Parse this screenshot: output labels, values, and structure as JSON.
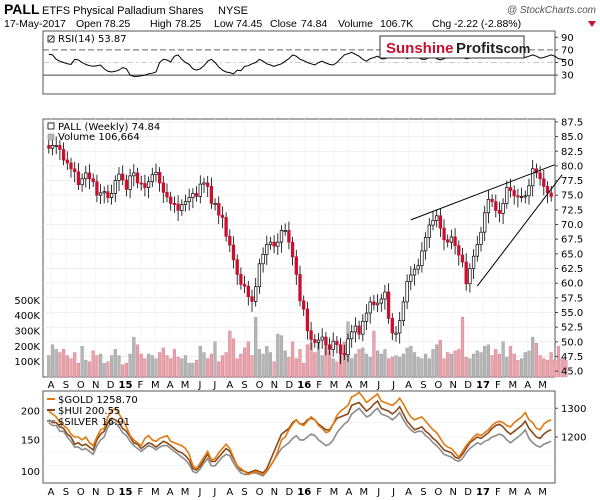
{
  "header": {
    "symbol": "PALL",
    "name": "ETFS Physical Palladium Shares",
    "exchange": "NYSE",
    "watermark": "@ StockCharts.com",
    "date": "17-May-2017",
    "open_label": "Open",
    "open": "78.25",
    "high_label": "High",
    "high": "78.25",
    "low_label": "Low",
    "low": "74.45",
    "close_label": "Close",
    "close": "74.84",
    "volume_label": "Volume",
    "volume": "106.7K",
    "chg_label": "Chg",
    "chg": "-2.22 (-2.88%)"
  },
  "logo": {
    "part1": "Sunshine",
    "part2": "Profits",
    "part3": ".com"
  },
  "colors": {
    "up": "#ffffff",
    "down": "#c8102e",
    "gold": "#e07a10",
    "hui": "#8b4a1c",
    "silver": "#8c8c8c",
    "rsi": "#000000",
    "volume_up": "#b5b5b5",
    "volume_down": "#e8a3ad"
  },
  "x_axis": {
    "labels": [
      "A",
      "S",
      "O",
      "N",
      "D",
      "15",
      "F",
      "M",
      "A",
      "M",
      "J",
      "J",
      "A",
      "S",
      "O",
      "N",
      "D",
      "16",
      "F",
      "M",
      "A",
      "M",
      "J",
      "J",
      "A",
      "S",
      "O",
      "N",
      "D",
      "17",
      "F",
      "M",
      "A",
      "M"
    ],
    "bold": [
      "15",
      "16",
      "17"
    ]
  },
  "chart_data": [
    {
      "type": "line",
      "panel": "RSI",
      "title": "RSI(14) 53.87",
      "ylim": [
        0,
        100
      ],
      "yticks": [
        30,
        50,
        70,
        90
      ],
      "reference_lines": [
        30,
        70
      ],
      "values": [
        63,
        62,
        55,
        52,
        50,
        48,
        47,
        55,
        54,
        50,
        47,
        45,
        44,
        45,
        46,
        40,
        36,
        35,
        36,
        38,
        42,
        40,
        30,
        28,
        28,
        29,
        30,
        32,
        33,
        35,
        50,
        55,
        54,
        51,
        60,
        62,
        55,
        50,
        47,
        40,
        38,
        40,
        45,
        52,
        55,
        50,
        43,
        38,
        35,
        34,
        32,
        38,
        37,
        44,
        45,
        48,
        50,
        55,
        52,
        48,
        46,
        44,
        46,
        48,
        52,
        56,
        62,
        60,
        55,
        53,
        50,
        48,
        46,
        50,
        52,
        49,
        47,
        46,
        50,
        56,
        62,
        64,
        66,
        63,
        60,
        55,
        52,
        56,
        58,
        60,
        56,
        56,
        58,
        60,
        58,
        62,
        60,
        56,
        58,
        60,
        58,
        55,
        55,
        58,
        60,
        56,
        54,
        56,
        58,
        62,
        60,
        62,
        58,
        56,
        57,
        60,
        58,
        59,
        60,
        58,
        61,
        62,
        60,
        58,
        61,
        62,
        60,
        63,
        62,
        58,
        60,
        62,
        60,
        57,
        58,
        60,
        62,
        60,
        56,
        55,
        54
      ]
    },
    {
      "type": "candlestick",
      "panel": "Price",
      "title": "PALL (Weekly) 74.84",
      "ylim": [
        44,
        88
      ],
      "yticks": [
        45,
        47.5,
        50,
        52.5,
        55,
        57.5,
        60,
        62.5,
        65,
        67.5,
        70,
        72.5,
        75,
        77.5,
        80,
        82.5,
        85,
        87.5
      ],
      "series": [
        {
          "name": "PALL (Weekly)",
          "close": [
            83.0,
            83.5,
            83.5,
            82.8,
            81.0,
            80.5,
            79.5,
            79.0,
            76.8,
            77.8,
            78.8,
            77.8,
            77.3,
            75.0,
            75.4,
            75.6,
            74.6,
            75.3,
            77.5,
            78.6,
            77.6,
            76.0,
            78.3,
            78.8,
            77.1,
            77.0,
            76.3,
            77.3,
            78.5,
            78.9,
            77.1,
            75.5,
            74.7,
            73.6,
            73.5,
            72.4,
            73.4,
            73.9,
            74.6,
            75.3,
            74.8,
            76.9,
            77.1,
            76.5,
            73.6,
            73.6,
            71.6,
            71.2,
            68.0,
            66.5,
            64.0,
            61.5,
            59.8,
            59.5,
            57.7,
            56.9,
            59.4,
            63.3,
            64.9,
            66.6,
            67.0,
            66.3,
            67.0,
            69.0,
            69.0,
            67.0,
            64.5,
            61.5,
            57.0,
            55.6,
            51.9,
            50.4,
            49.9,
            50.3,
            50.8,
            49.5,
            48.7,
            50.1,
            49.5,
            48.0,
            47.8,
            50.5,
            51.7,
            52.7,
            51.3,
            53.5,
            54.9,
            56.8,
            56.3,
            56.6,
            57.3,
            58.5,
            54.0,
            51.5,
            51.5,
            53.6,
            56.8,
            60.3,
            61.4,
            62.4,
            63.0,
            65.5,
            67.8,
            69.9,
            70.7,
            71.5,
            69.4,
            67.4,
            67.0,
            67.9,
            66.4,
            64.8,
            63.6,
            59.9,
            62.5,
            64.6,
            66.6,
            68.7,
            72.0,
            74.3,
            73.9,
            72.4,
            71.9,
            73.6,
            76.3,
            75.8,
            74.9,
            74.7,
            74.8,
            74.9,
            76.6,
            79.5,
            78.8,
            77.8,
            76.5,
            75.4,
            74.8
          ],
          "range_low": 45.5,
          "range_high": 84.5
        }
      ],
      "trendlines": [
        {
          "from": [
            "2016-07",
            70.8
          ],
          "to": [
            "2017-04",
            80.2
          ]
        },
        {
          "from": [
            "2016-11",
            59.5
          ],
          "to": [
            "2017-05",
            78.5
          ]
        }
      ]
    },
    {
      "type": "bar",
      "panel": "Volume",
      "title": "Volume 106,664",
      "ylim": [
        0,
        600000
      ],
      "yticks": [
        100000,
        200000,
        300000,
        400000,
        500000
      ],
      "ytick_labels": [
        "100K",
        "200K",
        "300K",
        "400K",
        "500K"
      ],
      "values": [
        140000,
        210000,
        180000,
        160000,
        180000,
        140000,
        120000,
        160000,
        90000,
        200000,
        110000,
        100000,
        170000,
        140000,
        150000,
        90000,
        100000,
        140000,
        180000,
        140000,
        80000,
        90000,
        150000,
        260000,
        210000,
        150000,
        120000,
        150000,
        140000,
        120000,
        160000,
        190000,
        140000,
        120000,
        180000,
        130000,
        120000,
        140000,
        90000,
        90000,
        110000,
        200000,
        160000,
        120000,
        150000,
        230000,
        100000,
        140000,
        160000,
        300000,
        250000,
        120000,
        150000,
        190000,
        230000,
        140000,
        390000,
        180000,
        150000,
        200000,
        160000,
        100000,
        280000,
        270000,
        170000,
        130000,
        230000,
        120000,
        180000,
        90000,
        210000,
        220000,
        160000,
        230000,
        140000,
        220000,
        170000,
        120000,
        100000,
        150000,
        230000,
        360000,
        120000,
        150000,
        180000,
        190000,
        150000,
        130000,
        300000,
        170000,
        150000,
        180000,
        120000,
        130000,
        140000,
        130000,
        150000,
        190000,
        200000,
        160000,
        130000,
        120000,
        150000,
        120000,
        180000,
        210000,
        240000,
        120000,
        160000,
        150000,
        170000,
        180000,
        390000,
        130000,
        120000,
        150000,
        170000,
        160000,
        200000,
        210000,
        140000,
        180000,
        150000,
        230000,
        130000,
        200000,
        150000,
        110000,
        120000,
        160000,
        170000,
        260000,
        220000,
        140000,
        120000,
        110000,
        160000,
        110000,
        200000,
        120000,
        110000
      ]
    },
    {
      "type": "line",
      "panel": "Comparison",
      "y_left_ticks": [
        100,
        150,
        200
      ],
      "y_right_ticks": [
        1200,
        1300
      ],
      "series": [
        {
          "name": "$GOLD 1258.70",
          "color": "#e07a10",
          "values": [
            1290,
            1280,
            1270,
            1250,
            1240,
            1230,
            1210,
            1200,
            1200,
            1190,
            1200,
            1180,
            1170,
            1200,
            1225,
            1230,
            1270,
            1290,
            1300,
            1280,
            1260,
            1235,
            1205,
            1190,
            1180,
            1170,
            1195,
            1205,
            1190,
            1185,
            1195,
            1200,
            1205,
            1185,
            1180,
            1175,
            1170,
            1160,
            1140,
            1100,
            1090,
            1110,
            1130,
            1150,
            1120,
            1125,
            1145,
            1160,
            1175,
            1160,
            1130,
            1100,
            1090,
            1080,
            1070,
            1075,
            1080,
            1075,
            1070,
            1080,
            1100,
            1120,
            1150,
            1190,
            1200,
            1225,
            1245,
            1260,
            1245,
            1240,
            1255,
            1270,
            1260,
            1240,
            1230,
            1215,
            1220,
            1245,
            1275,
            1290,
            1300,
            1310,
            1340,
            1345,
            1355,
            1340,
            1320,
            1330,
            1340,
            1350,
            1325,
            1320,
            1315,
            1310,
            1320,
            1335,
            1315,
            1290,
            1270,
            1260,
            1265,
            1270,
            1255,
            1240,
            1225,
            1215,
            1195,
            1175,
            1165,
            1160,
            1145,
            1130,
            1150,
            1170,
            1185,
            1200,
            1210,
            1205,
            1215,
            1225,
            1240,
            1250,
            1255,
            1250,
            1240,
            1235,
            1250,
            1260,
            1270,
            1285,
            1260,
            1250,
            1230,
            1225,
            1245,
            1255,
            1260
          ]
        },
        {
          "name": "$HUI 200.55",
          "color": "#8b4a1c",
          "values": [
            1260,
            1250,
            1250,
            1235,
            1230,
            1210,
            1200,
            1175,
            1180,
            1170,
            1175,
            1165,
            1155,
            1190,
            1210,
            1220,
            1250,
            1265,
            1260,
            1250,
            1230,
            1220,
            1200,
            1180,
            1175,
            1160,
            1170,
            1180,
            1175,
            1165,
            1175,
            1185,
            1180,
            1170,
            1160,
            1150,
            1145,
            1135,
            1120,
            1090,
            1085,
            1100,
            1120,
            1140,
            1115,
            1115,
            1130,
            1145,
            1160,
            1150,
            1125,
            1100,
            1085,
            1080,
            1075,
            1080,
            1085,
            1080,
            1075,
            1090,
            1120,
            1150,
            1180,
            1210,
            1220,
            1230,
            1250,
            1260,
            1245,
            1245,
            1260,
            1265,
            1260,
            1245,
            1235,
            1225,
            1225,
            1245,
            1265,
            1270,
            1275,
            1280,
            1310,
            1315,
            1320,
            1305,
            1290,
            1300,
            1315,
            1325,
            1300,
            1295,
            1290,
            1280,
            1290,
            1305,
            1280,
            1255,
            1240,
            1225,
            1230,
            1235,
            1220,
            1210,
            1195,
            1185,
            1170,
            1155,
            1150,
            1145,
            1130,
            1125,
            1140,
            1160,
            1180,
            1190,
            1200,
            1195,
            1205,
            1215,
            1230,
            1240,
            1245,
            1235,
            1220,
            1210,
            1220,
            1230,
            1240,
            1255,
            1230,
            1215,
            1200,
            1195,
            1210,
            1220,
            1225
          ]
        },
        {
          "name": "$SILVER 16.91",
          "color": "#8c8c8c",
          "values": [
            1250,
            1240,
            1240,
            1220,
            1220,
            1200,
            1185,
            1165,
            1165,
            1155,
            1160,
            1150,
            1140,
            1170,
            1190,
            1200,
            1235,
            1250,
            1250,
            1235,
            1215,
            1205,
            1185,
            1170,
            1160,
            1150,
            1160,
            1170,
            1165,
            1155,
            1165,
            1170,
            1170,
            1160,
            1150,
            1140,
            1130,
            1120,
            1105,
            1080,
            1075,
            1090,
            1110,
            1125,
            1100,
            1100,
            1115,
            1130,
            1140,
            1135,
            1110,
            1090,
            1075,
            1070,
            1070,
            1075,
            1075,
            1070,
            1065,
            1080,
            1100,
            1120,
            1140,
            1160,
            1170,
            1180,
            1195,
            1205,
            1190,
            1190,
            1200,
            1210,
            1205,
            1190,
            1180,
            1170,
            1175,
            1190,
            1215,
            1230,
            1245,
            1255,
            1280,
            1290,
            1300,
            1285,
            1270,
            1275,
            1290,
            1300,
            1280,
            1275,
            1270,
            1260,
            1270,
            1285,
            1260,
            1240,
            1225,
            1215,
            1220,
            1220,
            1205,
            1195,
            1180,
            1170,
            1155,
            1140,
            1135,
            1130,
            1120,
            1115,
            1125,
            1145,
            1160,
            1170,
            1180,
            1175,
            1185,
            1190,
            1200,
            1205,
            1210,
            1205,
            1190,
            1180,
            1190,
            1200,
            1210,
            1225,
            1195,
            1180,
            1170,
            1165,
            1175,
            1180,
            1185
          ]
        }
      ]
    }
  ]
}
